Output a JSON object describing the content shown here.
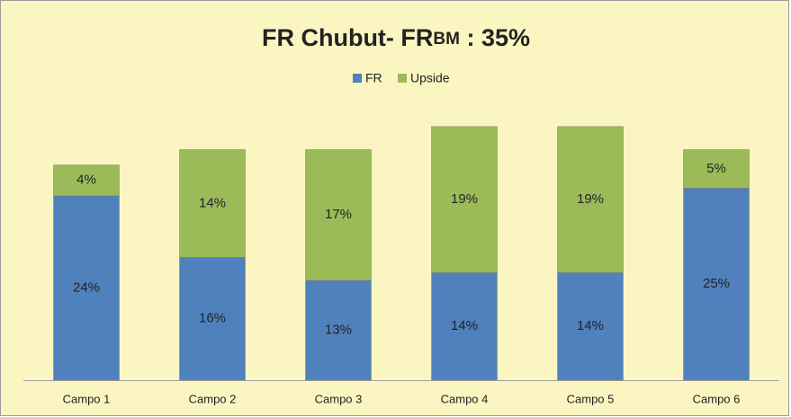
{
  "chart_data": {
    "type": "stacked_bar",
    "title": [
      "FR Chubut- FR",
      "BM",
      " : 35%"
    ],
    "categories": [
      "Campo 1",
      "Campo 2",
      "Campo 3",
      "Campo 4",
      "Campo 5",
      "Campo 6"
    ],
    "series": [
      {
        "name": "FR",
        "color": "#4f81bd",
        "values": [
          24,
          16,
          13,
          14,
          14,
          25
        ],
        "value_labels": [
          "24%",
          "16%",
          "13%",
          "14%",
          "14%",
          "25%"
        ]
      },
      {
        "name": "Upside",
        "color": "#9bbb59",
        "values": [
          4,
          14,
          17,
          19,
          19,
          5
        ],
        "value_labels": [
          "4%",
          "14%",
          "17%",
          "19%",
          "19%",
          "5%"
        ]
      }
    ],
    "legend": "top"
  }
}
